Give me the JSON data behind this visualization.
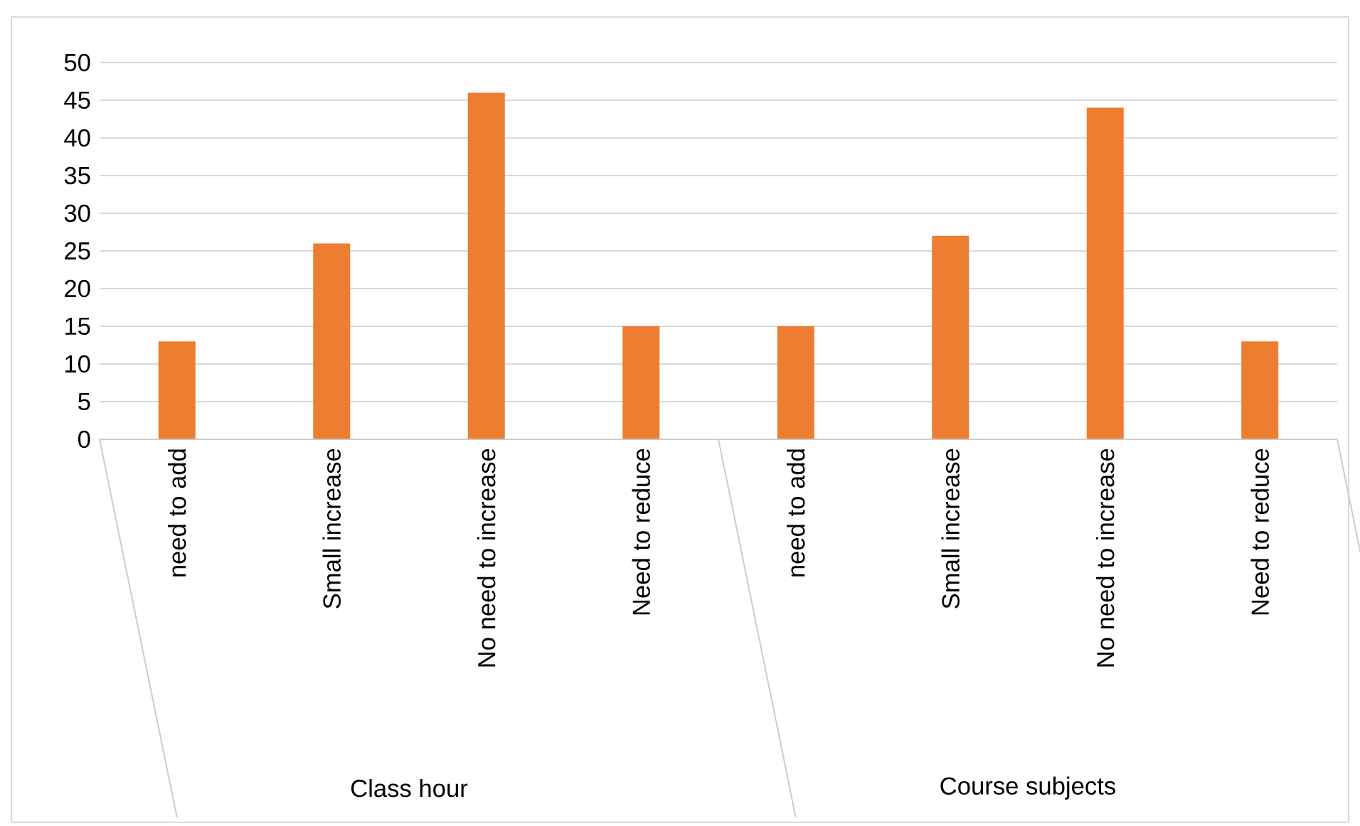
{
  "chart_data": {
    "type": "bar",
    "categories": [
      "need to add",
      "Small increase",
      "No need to increase",
      "Need to reduce",
      "need to add",
      "Small increase",
      "No need to increase",
      "Need to reduce"
    ],
    "values": [
      13,
      26,
      46,
      15,
      15,
      27,
      44,
      13
    ],
    "color": "#ed7d31",
    "ylim": [
      0,
      50
    ],
    "yticks": [
      0,
      5,
      10,
      15,
      20,
      25,
      30,
      35,
      40,
      45,
      50
    ],
    "grid": "y",
    "annotations": [
      "Class hour",
      "Course subjects"
    ]
  }
}
